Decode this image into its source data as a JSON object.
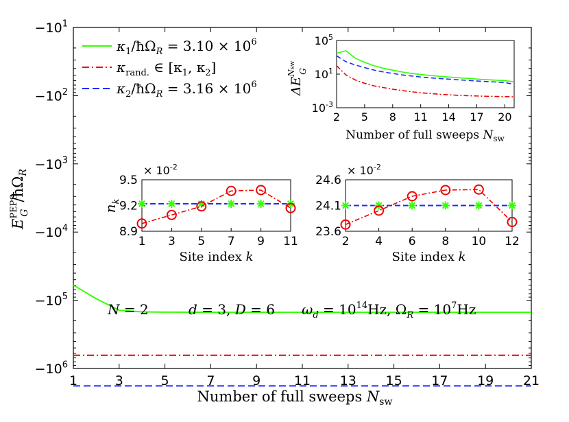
{
  "chart_data": [
    {
      "id": "main",
      "type": "line",
      "title": "",
      "xlabel": "Number of full sweeps N_sw",
      "ylabel": "E_G^PEPS / ħΩ_R",
      "xlim": [
        1,
        21
      ],
      "x_ticks": [
        1,
        3,
        5,
        7,
        9,
        11,
        13,
        15,
        17,
        19,
        21
      ],
      "y_scale": "log-negative",
      "ylim_exponent": [
        1,
        6
      ],
      "y_ticks": [
        {
          "exp": 1,
          "label": "−10",
          "sup": "1"
        },
        {
          "exp": 2,
          "label": "−10",
          "sup": "2"
        },
        {
          "exp": 3,
          "label": "−10",
          "sup": "3"
        },
        {
          "exp": 4,
          "label": "−10",
          "sup": "4"
        },
        {
          "exp": 5,
          "label": "−10",
          "sup": "5"
        },
        {
          "exp": 6,
          "label": "−10",
          "sup": "6"
        }
      ],
      "x": [
        1,
        2,
        3,
        4,
        5,
        6,
        7,
        8,
        9,
        10,
        11,
        12,
        13,
        14,
        15,
        16,
        17,
        18,
        19,
        20,
        21
      ],
      "series": [
        {
          "name": "κ1/ħΩR = 3.10 × 10^6",
          "color": "#33ff00",
          "dash": "solid",
          "values": [
            -60000,
            -95000,
            -140000,
            -148000,
            -149000,
            -149500,
            -150000,
            -150000,
            -150000,
            -150000,
            -150000,
            -150000,
            -150000,
            -150000,
            -150000,
            -150000,
            -150000,
            -150000,
            -150000,
            -150000,
            -150000
          ]
        },
        {
          "name": "κrand. ∈ [κ1, κ2]",
          "color": "#ee0000",
          "dash": "dashdot",
          "values": [
            -640000,
            -640000,
            -640000,
            -640000,
            -640000,
            -640000,
            -640000,
            -640000,
            -640000,
            -640000,
            -640000,
            -640000,
            -640000,
            -640000,
            -640000,
            -640000,
            -640000,
            -640000,
            -640000,
            -640000,
            -640000
          ]
        },
        {
          "name": "κ2/ħΩR = 3.16 × 10^6",
          "color": "#1a2bff",
          "dash": "dashed",
          "values": [
            -1800000,
            -1800000,
            -1800000,
            -1800000,
            -1800000,
            -1800000,
            -1800000,
            -1800000,
            -1800000,
            -1800000,
            -1800000,
            -1800000,
            -1800000,
            -1800000,
            -1800000,
            -1800000,
            -1800000,
            -1800000,
            -1800000,
            -1800000,
            -1800000
          ]
        }
      ],
      "legend_placement": "top-left",
      "annotation": {
        "n": "N = 2",
        "dD": "d = 3, D = 6",
        "freqs": "ωd = 10^14 Hz, ΩR = 10^7 Hz"
      }
    },
    {
      "id": "inset_gap",
      "type": "line",
      "xlabel": "Number of full sweeps N_sw",
      "ylabel": "ΔE_G^Nsw",
      "xlim": [
        2,
        21
      ],
      "x_ticks": [
        2,
        5,
        8,
        11,
        14,
        17,
        20
      ],
      "y_scale": "log",
      "ylim_exponent": [
        -3,
        5
      ],
      "y_ticks": [
        {
          "exp": 5,
          "label": "10",
          "sup": "5"
        },
        {
          "exp": 1,
          "label": "10",
          "sup": "1"
        },
        {
          "exp": -3,
          "label": "10",
          "sup": "-3"
        }
      ],
      "x": [
        2,
        3,
        4,
        5,
        6,
        7,
        8,
        9,
        10,
        11,
        12,
        13,
        14,
        15,
        16,
        17,
        18,
        19,
        20,
        21
      ],
      "series": [
        {
          "name": "κ1",
          "color": "#33ff00",
          "dash": "solid",
          "values": [
            3000,
            6000,
            800,
            250,
            100,
            50,
            30,
            18,
            12,
            9,
            7,
            5.5,
            4.5,
            3.7,
            3.1,
            2.6,
            2.2,
            1.9,
            1.7,
            1.2
          ]
        },
        {
          "name": "κ2",
          "color": "#1a2bff",
          "dash": "dashed",
          "values": [
            1500,
            300,
            120,
            60,
            30,
            18,
            12,
            8,
            6,
            4.5,
            3.6,
            3,
            2.5,
            2.1,
            1.8,
            1.5,
            1.3,
            1.15,
            1.0,
            0.6
          ]
        },
        {
          "name": "κrand.",
          "color": "#ee0000",
          "dash": "dashdot",
          "values": [
            100,
            8,
            2,
            0.8,
            0.4,
            0.25,
            0.16,
            0.11,
            0.08,
            0.06,
            0.05,
            0.04,
            0.035,
            0.03,
            0.027,
            0.025,
            0.023,
            0.022,
            0.021,
            0.02
          ]
        }
      ]
    },
    {
      "id": "inset_nk_odd",
      "type": "scatter",
      "xlabel": "Site index k",
      "ylabel": "n_k",
      "multiplier": "× 10^-2",
      "ylim": [
        8.9,
        9.5
      ],
      "y_ticks": [
        8.9,
        9.2,
        9.5
      ],
      "x_ticks": [
        1,
        3,
        5,
        7,
        9,
        11
      ],
      "x": [
        1,
        3,
        5,
        7,
        9,
        11
      ],
      "series": [
        {
          "name": "κ1 markers",
          "color": "#33ff00",
          "marker": "star",
          "values": [
            9.22,
            9.22,
            9.22,
            9.22,
            9.22,
            9.22
          ]
        },
        {
          "name": "κ2 line",
          "color": "#1a2bff",
          "dash": "dashed",
          "values": [
            9.22,
            9.22,
            9.22,
            9.22,
            9.22,
            9.22
          ]
        },
        {
          "name": "κrand.",
          "color": "#ee0000",
          "dash": "dashdot",
          "marker": "circle",
          "values": [
            8.99,
            9.09,
            9.19,
            9.37,
            9.38,
            9.17
          ]
        }
      ]
    },
    {
      "id": "inset_nk_even",
      "type": "scatter",
      "xlabel": "Site index k",
      "ylabel": "",
      "multiplier": "× 10^-2",
      "ylim": [
        23.6,
        24.6
      ],
      "y_ticks": [
        23.6,
        24.1,
        24.6
      ],
      "x_ticks": [
        2,
        4,
        6,
        8,
        10,
        12
      ],
      "x": [
        2,
        4,
        6,
        8,
        10,
        12
      ],
      "series": [
        {
          "name": "κ1 markers",
          "color": "#33ff00",
          "marker": "star",
          "values": [
            24.1,
            24.1,
            24.1,
            24.1,
            24.1,
            24.1
          ]
        },
        {
          "name": "κ2 line",
          "color": "#1a2bff",
          "dash": "dashed",
          "values": [
            24.1,
            24.1,
            24.1,
            24.1,
            24.1,
            24.1
          ]
        },
        {
          "name": "κrand.",
          "color": "#ee0000",
          "dash": "dashdot",
          "marker": "circle",
          "values": [
            23.73,
            24.0,
            24.28,
            24.4,
            24.41,
            23.78
          ]
        }
      ]
    }
  ]
}
